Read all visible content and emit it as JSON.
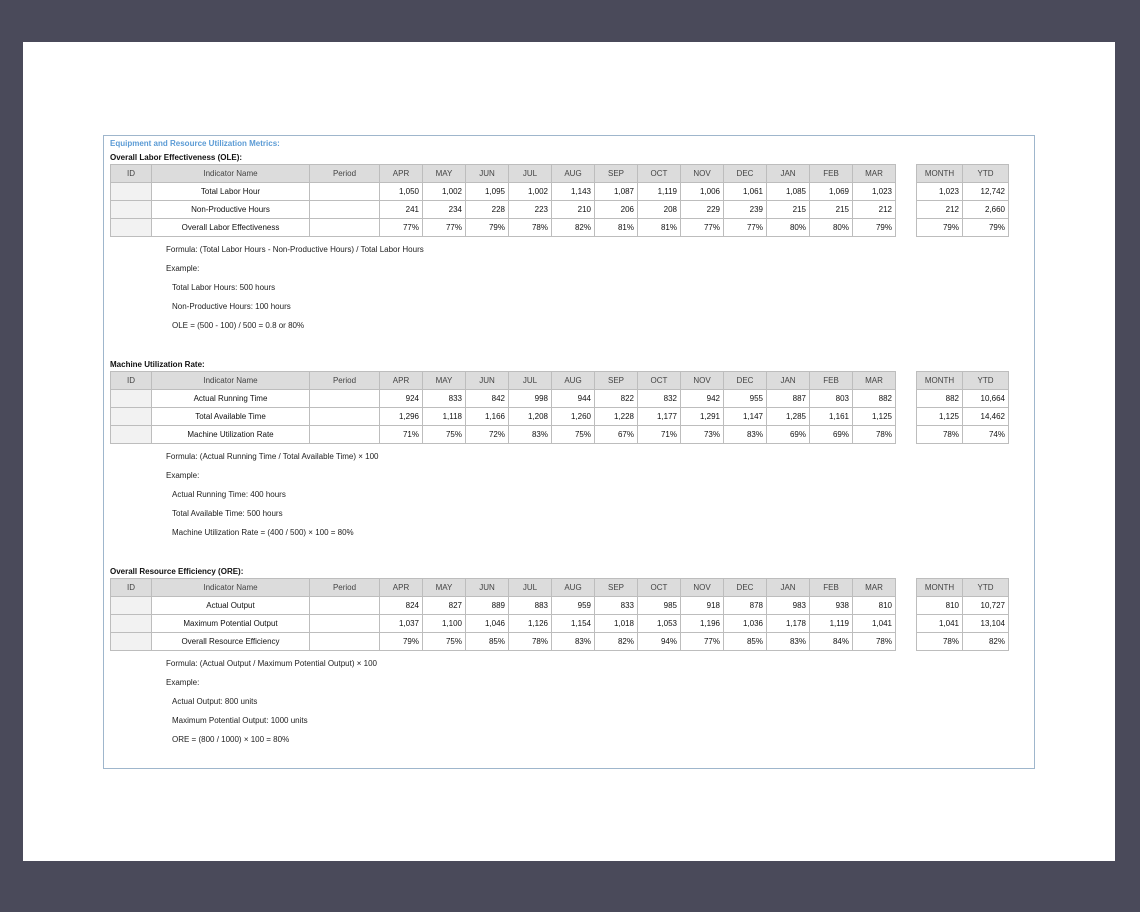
{
  "title": "Equipment and Resource Utilization Metrics:",
  "headers": {
    "id": "ID",
    "name": "Indicator Name",
    "period": "Period",
    "months": [
      "APR",
      "MAY",
      "JUN",
      "JUL",
      "AUG",
      "SEP",
      "OCT",
      "NOV",
      "DEC",
      "JAN",
      "FEB",
      "MAR"
    ],
    "month": "MONTH",
    "ytd": "YTD"
  },
  "sections": [
    {
      "title": "Overall Labor Effectiveness (OLE):",
      "rows": [
        {
          "name": "Total Labor Hour",
          "values": [
            "1,050",
            "1,002",
            "1,095",
            "1,002",
            "1,143",
            "1,087",
            "1,119",
            "1,006",
            "1,061",
            "1,085",
            "1,069",
            "1,023"
          ],
          "month": "1,023",
          "ytd": "12,742"
        },
        {
          "name": "Non-Productive Hours",
          "values": [
            "241",
            "234",
            "228",
            "223",
            "210",
            "206",
            "208",
            "229",
            "239",
            "215",
            "215",
            "212"
          ],
          "month": "212",
          "ytd": "2,660"
        },
        {
          "name": "Overall Labor Effectiveness",
          "values": [
            "77%",
            "77%",
            "79%",
            "78%",
            "82%",
            "81%",
            "81%",
            "77%",
            "77%",
            "80%",
            "80%",
            "79%"
          ],
          "month": "79%",
          "ytd": "79%"
        }
      ],
      "formula": "Formula: (Total Labor Hours - Non-Productive Hours) / Total Labor Hours",
      "example": "Example:",
      "lines": [
        "Total Labor Hours: 500 hours",
        "Non-Productive Hours: 100 hours",
        "OLE = (500 - 100) / 500 = 0.8 or 80%"
      ]
    },
    {
      "title": "Machine Utilization Rate:",
      "rows": [
        {
          "name": "Actual Running Time",
          "values": [
            "924",
            "833",
            "842",
            "998",
            "944",
            "822",
            "832",
            "942",
            "955",
            "887",
            "803",
            "882"
          ],
          "month": "882",
          "ytd": "10,664"
        },
        {
          "name": "Total Available Time",
          "values": [
            "1,296",
            "1,118",
            "1,166",
            "1,208",
            "1,260",
            "1,228",
            "1,177",
            "1,291",
            "1,147",
            "1,285",
            "1,161",
            "1,125"
          ],
          "month": "1,125",
          "ytd": "14,462"
        },
        {
          "name": "Machine Utilization Rate",
          "values": [
            "71%",
            "75%",
            "72%",
            "83%",
            "75%",
            "67%",
            "71%",
            "73%",
            "83%",
            "69%",
            "69%",
            "78%"
          ],
          "month": "78%",
          "ytd": "74%"
        }
      ],
      "formula": "Formula: (Actual Running Time / Total Available Time) × 100",
      "example": "Example:",
      "lines": [
        "Actual Running Time: 400 hours",
        "Total Available Time: 500 hours",
        "Machine Utilization Rate = (400 / 500) × 100 = 80%"
      ]
    },
    {
      "title": "Overall Resource Efficiency (ORE):",
      "rows": [
        {
          "name": "Actual Output",
          "values": [
            "824",
            "827",
            "889",
            "883",
            "959",
            "833",
            "985",
            "918",
            "878",
            "983",
            "938",
            "810"
          ],
          "month": "810",
          "ytd": "10,727"
        },
        {
          "name": "Maximum Potential Output",
          "values": [
            "1,037",
            "1,100",
            "1,046",
            "1,126",
            "1,154",
            "1,018",
            "1,053",
            "1,196",
            "1,036",
            "1,178",
            "1,119",
            "1,041"
          ],
          "month": "1,041",
          "ytd": "13,104"
        },
        {
          "name": "Overall Resource Efficiency",
          "values": [
            "79%",
            "75%",
            "85%",
            "78%",
            "83%",
            "82%",
            "94%",
            "77%",
            "85%",
            "83%",
            "84%",
            "78%"
          ],
          "month": "78%",
          "ytd": "82%"
        }
      ],
      "formula": "Formula: (Actual Output / Maximum Potential Output) × 100",
      "example": "Example:",
      "lines": [
        "Actual Output: 800 units",
        "Maximum Potential Output: 1000 units",
        "ORE = (800 / 1000) × 100 = 80%"
      ]
    }
  ]
}
